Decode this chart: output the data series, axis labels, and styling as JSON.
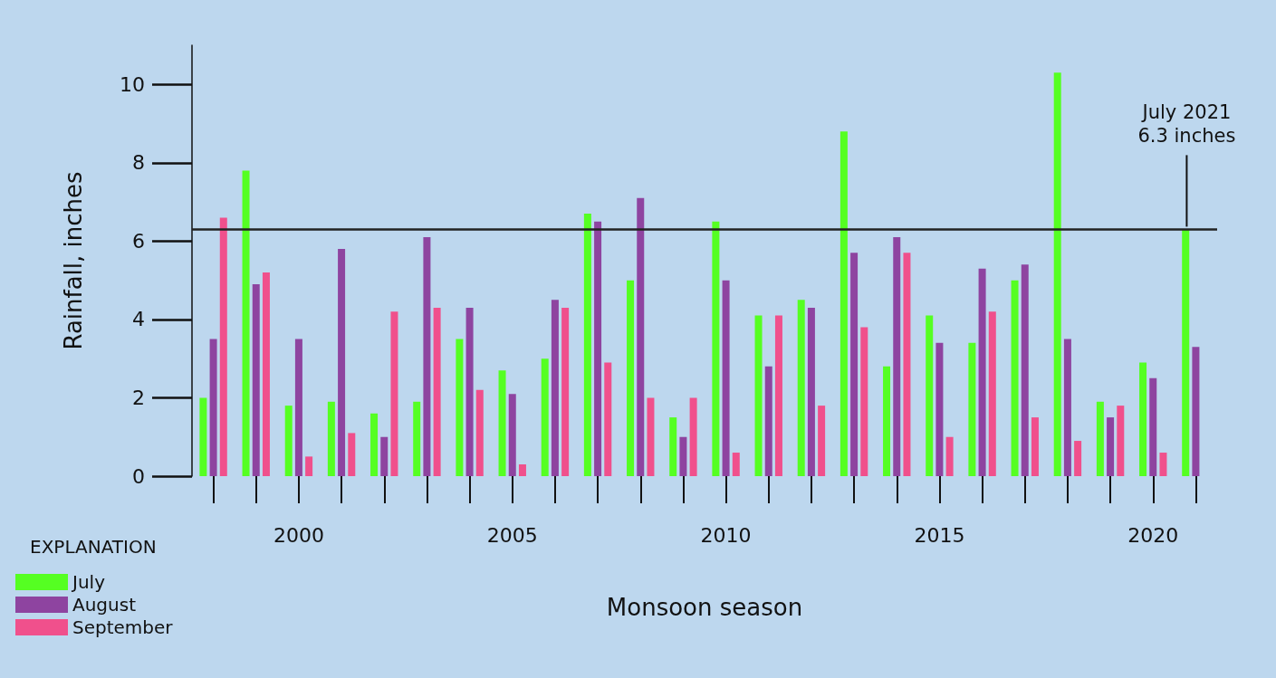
{
  "chart_data": {
    "type": "bar",
    "xlabel": "Monsoon season",
    "ylabel": "Rainfall, inches",
    "legend_title": "EXPLANATION",
    "categories": [
      null,
      null,
      "2000",
      null,
      null,
      null,
      null,
      "2005",
      null,
      null,
      null,
      null,
      "2010",
      null,
      null,
      null,
      null,
      "2015",
      null,
      null,
      null,
      null,
      "2020",
      null
    ],
    "series": [
      {
        "name": "July",
        "color": "#55ff22",
        "values": [
          2.0,
          7.8,
          1.8,
          1.9,
          1.6,
          1.9,
          3.5,
          2.7,
          3.0,
          6.7,
          5.0,
          1.5,
          6.5,
          4.1,
          4.5,
          8.8,
          2.8,
          4.1,
          3.4,
          5.0,
          10.3,
          1.9,
          2.9,
          6.3
        ]
      },
      {
        "name": "August",
        "color": "#8e44a0",
        "values": [
          3.5,
          4.9,
          3.5,
          5.8,
          1.0,
          6.1,
          4.3,
          2.1,
          4.5,
          6.5,
          7.1,
          1.0,
          5.0,
          2.8,
          4.3,
          5.7,
          6.1,
          3.4,
          5.3,
          5.4,
          3.5,
          1.5,
          2.5,
          3.3
        ]
      },
      {
        "name": "September",
        "color": "#f0508c",
        "values": [
          6.6,
          5.2,
          0.5,
          1.1,
          4.2,
          4.3,
          2.2,
          0.3,
          4.3,
          2.9,
          2.0,
          2.0,
          0.6,
          4.1,
          1.8,
          3.8,
          5.7,
          1.0,
          4.2,
          1.5,
          0.9,
          1.8,
          0.6,
          null
        ]
      }
    ],
    "ylim": [
      0,
      11
    ],
    "yticks": [
      0,
      2,
      4,
      6,
      8,
      10
    ],
    "ref_lines": [
      {
        "axis": "y",
        "value": 6.3,
        "color": "#222222"
      }
    ],
    "annotations": [
      {
        "text": "July 2021\n6.3 inches",
        "y": 6.3
      }
    ],
    "grid": false,
    "legend": "bottom left"
  }
}
